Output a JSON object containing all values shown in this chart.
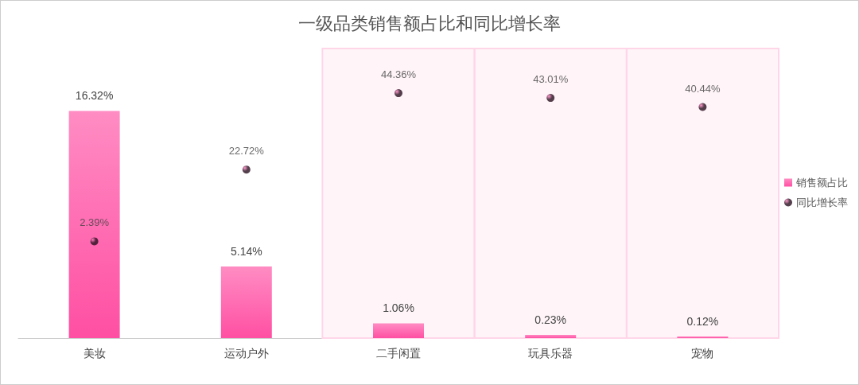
{
  "chart_data": {
    "type": "bar",
    "title": "一级品类销售额占比和同比增长率",
    "categories": [
      "美妆",
      "运动户外",
      "二手闲置",
      "玩具乐器",
      "宠物"
    ],
    "series": [
      {
        "name": "销售额占比",
        "color": "#ff4fa3",
        "values": [
          16.32,
          5.14,
          1.06,
          0.23,
          0.12
        ],
        "value_labels": [
          "16.32%",
          "5.14%",
          "1.06%",
          "0.23%",
          "0.12%"
        ]
      },
      {
        "name": "同比增长率",
        "type": "scatter",
        "axis": "y2",
        "color": "#2a1020",
        "marker": "circle",
        "values": [
          2.39,
          22.72,
          44.36,
          43.01,
          40.44
        ],
        "value_labels": [
          "2.39%",
          "22.72%",
          "44.36%",
          "43.01%",
          "40.44%"
        ]
      }
    ],
    "ylim": [
      0,
      20.8
    ],
    "y2lim": [
      -25,
      57
    ],
    "tick_labels": "x",
    "grid": false,
    "legend": "right",
    "bands": [
      {
        "axis": "x",
        "from": "二手闲置",
        "to": "二手闲置",
        "color": "#ffd6e8"
      },
      {
        "axis": "x",
        "from": "玩具乐器",
        "to": "玩具乐器",
        "color": "#ffd6e8"
      },
      {
        "axis": "x",
        "from": "宠物",
        "to": "宠物",
        "color": "#ffd6e8"
      }
    ]
  }
}
